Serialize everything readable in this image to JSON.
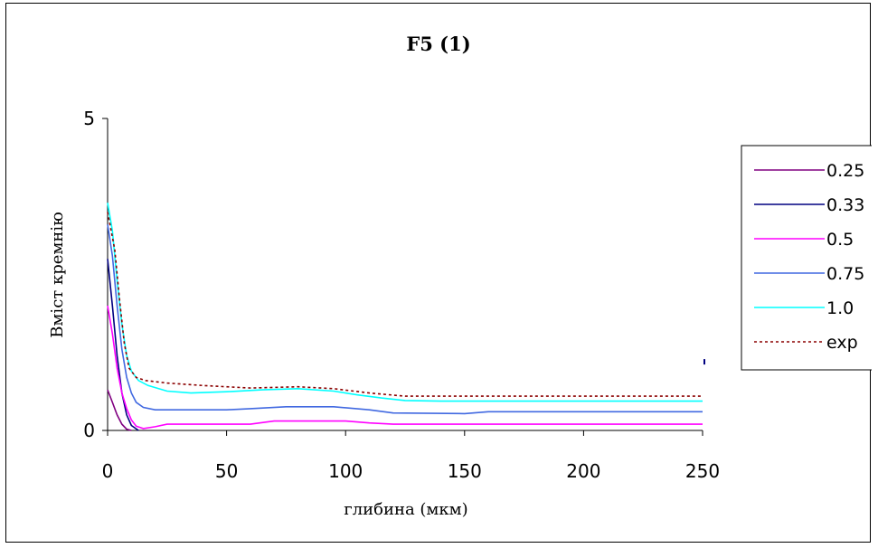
{
  "chart_data": {
    "type": "line",
    "title": "F5 (1)",
    "xlabel": "глибина (мкм)",
    "ylabel": "Вміст кремнію",
    "xlim": [
      0,
      250
    ],
    "ylim": [
      0,
      5
    ],
    "x_ticks": [
      "0",
      "50",
      "100",
      "150",
      "200",
      "250"
    ],
    "y_ticks": [
      "0",
      "5"
    ],
    "grid": false,
    "legend_position": "right",
    "series": [
      {
        "name": "0.25",
        "color": "#800080",
        "dash": "solid",
        "points": [
          [
            0,
            0.65
          ],
          [
            2,
            0.45
          ],
          [
            4,
            0.25
          ],
          [
            6,
            0.1
          ],
          [
            8,
            0.02
          ],
          [
            10,
            0
          ]
        ]
      },
      {
        "name": "0.33",
        "color": "#000080",
        "dash": "solid",
        "points": [
          [
            0,
            2.75
          ],
          [
            2,
            2.0
          ],
          [
            4,
            1.2
          ],
          [
            6,
            0.6
          ],
          [
            8,
            0.25
          ],
          [
            10,
            0.08
          ],
          [
            13,
            0
          ]
        ]
      },
      {
        "name": "0.5",
        "color": "#ff00ff",
        "dash": "solid",
        "points": [
          [
            0,
            2.0
          ],
          [
            2,
            1.55
          ],
          [
            4,
            1.0
          ],
          [
            6,
            0.6
          ],
          [
            8,
            0.35
          ],
          [
            10,
            0.17
          ],
          [
            12,
            0.07
          ],
          [
            15,
            0.03
          ],
          [
            20,
            0.06
          ],
          [
            25,
            0.1
          ],
          [
            60,
            0.1
          ],
          [
            70,
            0.15
          ],
          [
            100,
            0.15
          ],
          [
            110,
            0.12
          ],
          [
            120,
            0.1
          ],
          [
            250,
            0.1
          ]
        ]
      },
      {
        "name": "0.75",
        "color": "#4169e1",
        "dash": "solid",
        "points": [
          [
            0,
            3.3
          ],
          [
            2,
            2.8
          ],
          [
            4,
            2.0
          ],
          [
            6,
            1.3
          ],
          [
            8,
            0.85
          ],
          [
            10,
            0.6
          ],
          [
            12,
            0.45
          ],
          [
            15,
            0.37
          ],
          [
            20,
            0.33
          ],
          [
            30,
            0.33
          ],
          [
            50,
            0.33
          ],
          [
            60,
            0.35
          ],
          [
            75,
            0.38
          ],
          [
            95,
            0.38
          ],
          [
            110,
            0.33
          ],
          [
            120,
            0.28
          ],
          [
            150,
            0.27
          ],
          [
            160,
            0.3
          ],
          [
            200,
            0.3
          ],
          [
            250,
            0.3
          ]
        ]
      },
      {
        "name": "1.0",
        "color": "#00ffff",
        "dash": "solid",
        "points": [
          [
            0,
            3.65
          ],
          [
            2,
            3.2
          ],
          [
            4,
            2.4
          ],
          [
            6,
            1.7
          ],
          [
            8,
            1.2
          ],
          [
            10,
            0.95
          ],
          [
            13,
            0.8
          ],
          [
            17,
            0.72
          ],
          [
            25,
            0.63
          ],
          [
            35,
            0.6
          ],
          [
            50,
            0.62
          ],
          [
            65,
            0.65
          ],
          [
            80,
            0.67
          ],
          [
            95,
            0.63
          ],
          [
            105,
            0.57
          ],
          [
            115,
            0.52
          ],
          [
            125,
            0.48
          ],
          [
            140,
            0.47
          ],
          [
            250,
            0.47
          ]
        ]
      },
      {
        "name": "exp",
        "color": "#8b0000",
        "dash": "dotted",
        "points": [
          [
            0,
            3.5
          ],
          [
            3,
            2.9
          ],
          [
            5,
            2.1
          ],
          [
            7,
            1.4
          ],
          [
            9,
            1.0
          ],
          [
            12,
            0.85
          ],
          [
            16,
            0.8
          ],
          [
            25,
            0.76
          ],
          [
            40,
            0.72
          ],
          [
            60,
            0.68
          ],
          [
            80,
            0.7
          ],
          [
            95,
            0.67
          ],
          [
            110,
            0.6
          ],
          [
            125,
            0.55
          ],
          [
            150,
            0.55
          ],
          [
            200,
            0.55
          ],
          [
            250,
            0.55
          ]
        ]
      }
    ],
    "stray_marker": {
      "x": 250,
      "y": 1.1,
      "color": "#000080"
    }
  }
}
